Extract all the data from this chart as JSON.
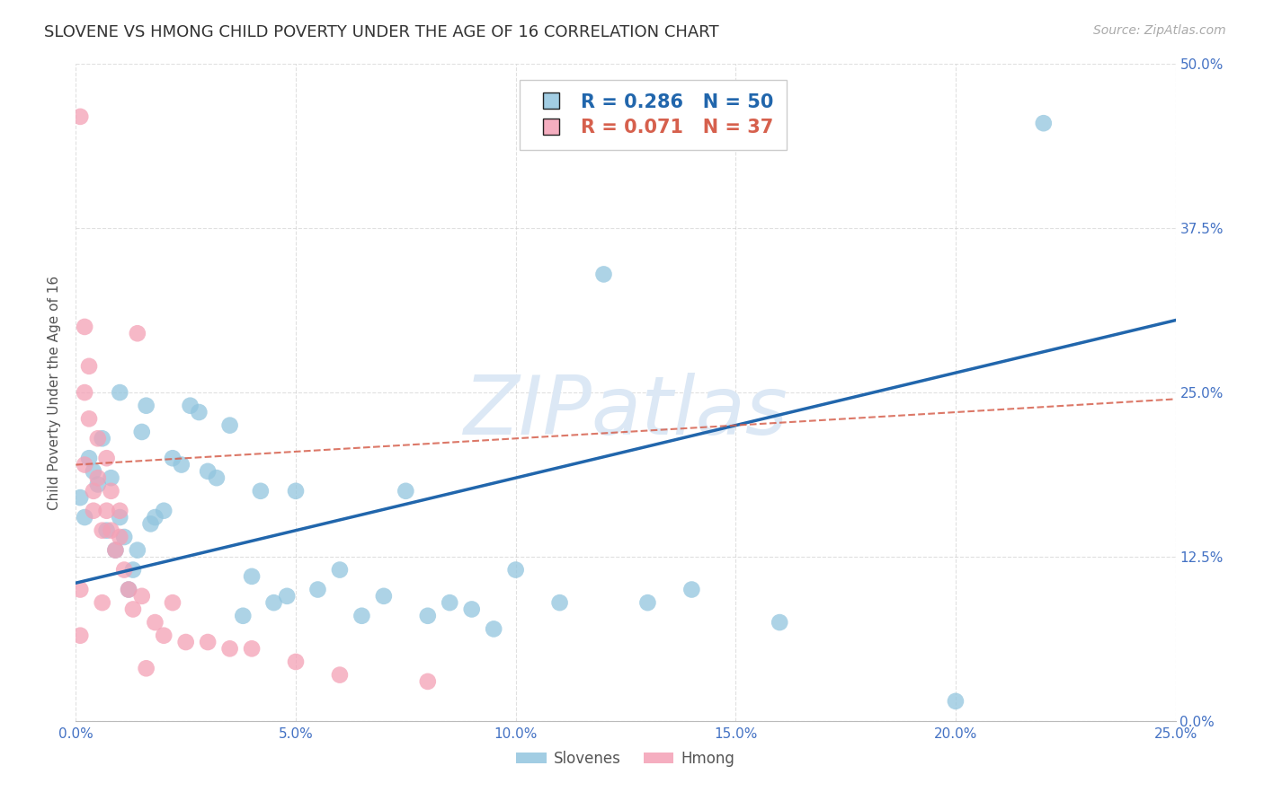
{
  "title": "SLOVENE VS HMONG CHILD POVERTY UNDER THE AGE OF 16 CORRELATION CHART",
  "source": "Source: ZipAtlas.com",
  "xlabel": "",
  "ylabel": "Child Poverty Under the Age of 16",
  "watermark": "ZIPatlas",
  "xlim": [
    0.0,
    0.25
  ],
  "ylim": [
    0.0,
    0.5
  ],
  "xticks": [
    0.0,
    0.05,
    0.1,
    0.15,
    0.2,
    0.25
  ],
  "yticks": [
    0.0,
    0.125,
    0.25,
    0.375,
    0.5
  ],
  "xtick_labels": [
    "0.0%",
    "5.0%",
    "10.0%",
    "15.0%",
    "20.0%",
    "25.0%"
  ],
  "ytick_labels": [
    "0.0%",
    "12.5%",
    "25.0%",
    "37.5%",
    "50.0%"
  ],
  "slovene_R": 0.286,
  "slovene_N": 50,
  "hmong_R": 0.071,
  "hmong_N": 37,
  "slovene_color": "#92c5de",
  "hmong_color": "#f4a0b5",
  "slovene_line_color": "#2166ac",
  "hmong_line_color": "#d6604d",
  "grid_color": "#cccccc",
  "title_color": "#333333",
  "axis_label_color": "#555555",
  "tick_label_color": "#4472c4",
  "watermark_color": "#dce8f5",
  "background_color": "#ffffff",
  "slovene_x": [
    0.001,
    0.002,
    0.003,
    0.004,
    0.005,
    0.006,
    0.007,
    0.008,
    0.009,
    0.01,
    0.01,
    0.011,
    0.012,
    0.013,
    0.014,
    0.015,
    0.016,
    0.017,
    0.018,
    0.02,
    0.022,
    0.024,
    0.026,
    0.028,
    0.03,
    0.032,
    0.035,
    0.038,
    0.04,
    0.042,
    0.045,
    0.048,
    0.05,
    0.055,
    0.06,
    0.065,
    0.07,
    0.075,
    0.08,
    0.085,
    0.09,
    0.095,
    0.1,
    0.11,
    0.12,
    0.13,
    0.14,
    0.16,
    0.2,
    0.22
  ],
  "slovene_y": [
    0.17,
    0.155,
    0.2,
    0.19,
    0.18,
    0.215,
    0.145,
    0.185,
    0.13,
    0.25,
    0.155,
    0.14,
    0.1,
    0.115,
    0.13,
    0.22,
    0.24,
    0.15,
    0.155,
    0.16,
    0.2,
    0.195,
    0.24,
    0.235,
    0.19,
    0.185,
    0.225,
    0.08,
    0.11,
    0.175,
    0.09,
    0.095,
    0.175,
    0.1,
    0.115,
    0.08,
    0.095,
    0.175,
    0.08,
    0.09,
    0.085,
    0.07,
    0.115,
    0.09,
    0.34,
    0.09,
    0.1,
    0.075,
    0.015,
    0.455
  ],
  "hmong_x": [
    0.001,
    0.001,
    0.001,
    0.002,
    0.002,
    0.003,
    0.003,
    0.004,
    0.004,
    0.005,
    0.005,
    0.006,
    0.006,
    0.007,
    0.007,
    0.008,
    0.008,
    0.009,
    0.01,
    0.01,
    0.011,
    0.012,
    0.013,
    0.014,
    0.015,
    0.016,
    0.018,
    0.02,
    0.022,
    0.025,
    0.03,
    0.035,
    0.04,
    0.05,
    0.06,
    0.08,
    0.002
  ],
  "hmong_y": [
    0.46,
    0.1,
    0.065,
    0.25,
    0.195,
    0.23,
    0.27,
    0.16,
    0.175,
    0.185,
    0.215,
    0.145,
    0.09,
    0.16,
    0.2,
    0.175,
    0.145,
    0.13,
    0.16,
    0.14,
    0.115,
    0.1,
    0.085,
    0.295,
    0.095,
    0.04,
    0.075,
    0.065,
    0.09,
    0.06,
    0.06,
    0.055,
    0.055,
    0.045,
    0.035,
    0.03,
    0.3
  ],
  "slovene_trendline_x": [
    0.0,
    0.25
  ],
  "slovene_trendline_y": [
    0.105,
    0.305
  ],
  "hmong_trendline_x": [
    0.0,
    0.25
  ],
  "hmong_trendline_y": [
    0.195,
    0.245
  ]
}
